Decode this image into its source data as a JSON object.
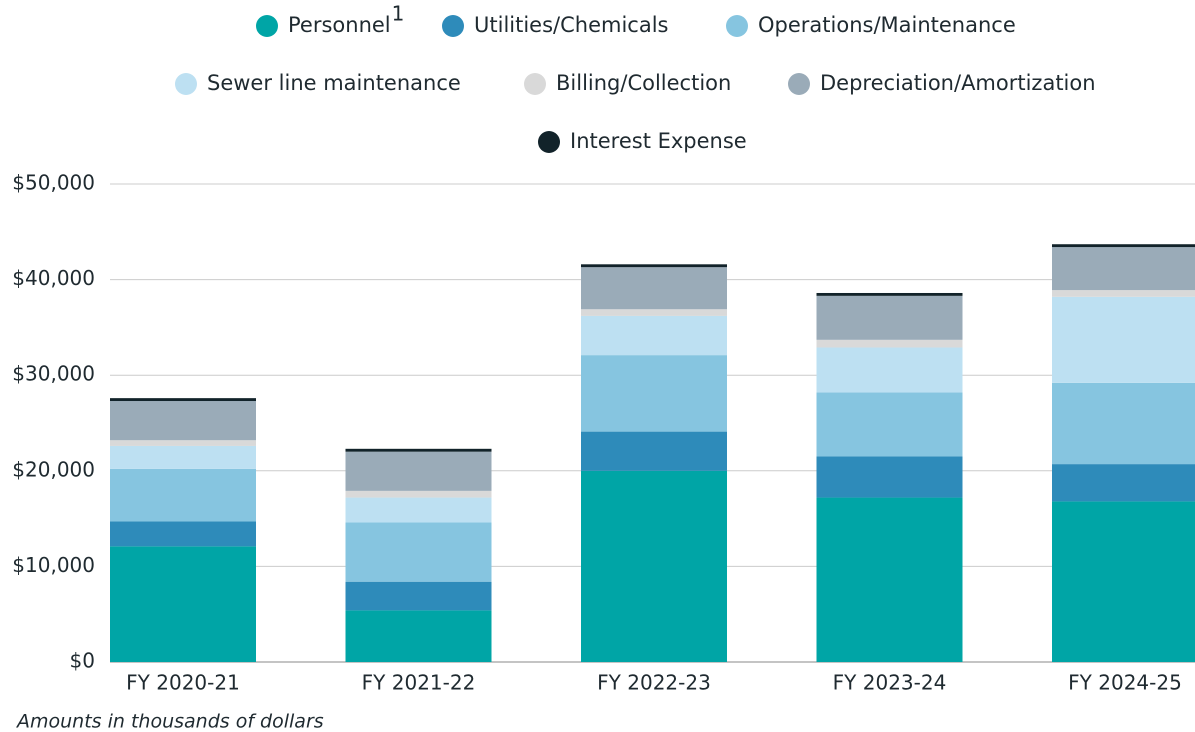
{
  "chart_data": {
    "type": "stacked_bar",
    "categories": [
      "FY 2020-21",
      "FY 2021-22",
      "FY 2022-23",
      "FY 2023-24",
      "FY 2024-25"
    ],
    "series": [
      {
        "name": "Personnel",
        "footnote_marker": "1",
        "color": "#00a5a6",
        "values": [
          12100,
          5400,
          20000,
          17200,
          16800
        ]
      },
      {
        "name": "Utilities/Chemicals",
        "color": "#2e8bba",
        "values": [
          2600,
          3000,
          4100,
          4300,
          3900
        ]
      },
      {
        "name": "Operations/Maintenance",
        "color": "#86c5e0",
        "values": [
          5500,
          6200,
          8000,
          6700,
          8500
        ]
      },
      {
        "name": "Sewer line maintenance",
        "color": "#bde0f2",
        "values": [
          2400,
          2600,
          4100,
          4700,
          9000
        ]
      },
      {
        "name": "Billing/Collection",
        "color": "#d9d9d9",
        "values": [
          600,
          700,
          700,
          800,
          700
        ]
      },
      {
        "name": "Depreciation/Amortization",
        "color": "#9aabb8",
        "values": [
          4100,
          4100,
          4400,
          4600,
          4500
        ]
      },
      {
        "name": "Interest Expense",
        "color": "#12232a",
        "values": [
          300,
          300,
          300,
          300,
          300
        ]
      }
    ],
    "ylim": [
      0,
      50000
    ],
    "yticks": [
      {
        "value": 0,
        "label": "$0"
      },
      {
        "value": 10000,
        "label": "$10,000"
      },
      {
        "value": 20000,
        "label": "$20,000"
      },
      {
        "value": 30000,
        "label": "$30,000"
      },
      {
        "value": 40000,
        "label": "$40,000"
      },
      {
        "value": 50000,
        "label": "$50,000"
      }
    ],
    "grid": true,
    "note": "Amounts in thousands of dollars"
  }
}
